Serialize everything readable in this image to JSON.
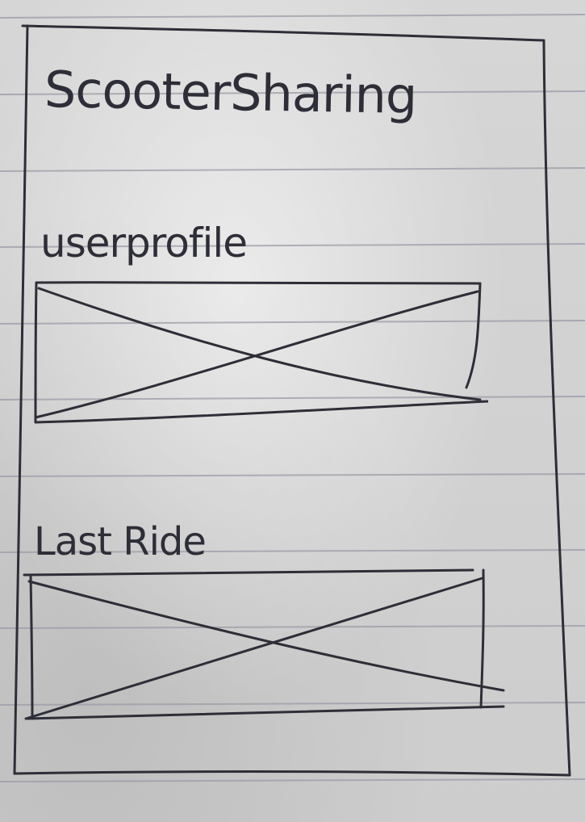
{
  "app": {
    "title": "ScooterSharing"
  },
  "sections": {
    "user_profile": {
      "heading": "userprofile"
    },
    "last_ride": {
      "heading": "Last Ride"
    }
  },
  "colors": {
    "ink": "#2e2e38",
    "paper": "#cfcfcf",
    "rule": "#9a9aa4"
  }
}
